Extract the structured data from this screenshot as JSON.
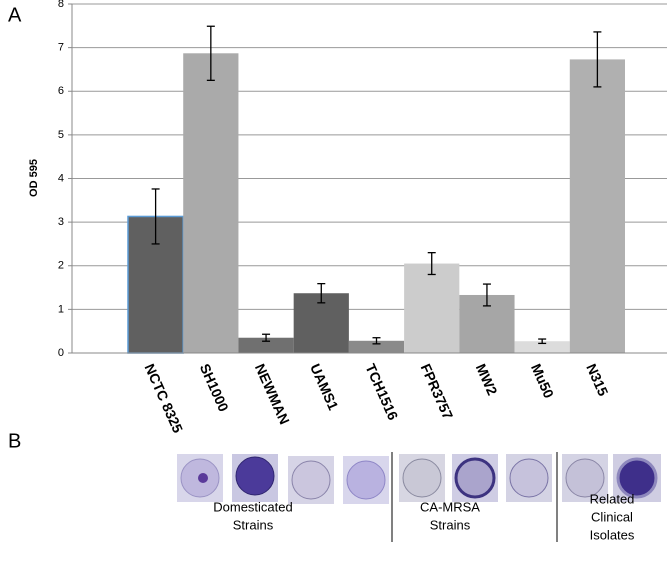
{
  "panel_labels": [
    "A",
    "B"
  ],
  "chart_data": {
    "type": "bar",
    "y_label": "OD 595",
    "categories": [
      "NCTC 8325",
      "SH1000",
      "NEWMAN",
      "UAMS1",
      "TCH1516",
      "FPR3757",
      "MW2",
      "Mu50",
      "N315"
    ],
    "values": [
      3.13,
      6.87,
      0.35,
      1.37,
      0.28,
      2.05,
      1.33,
      0.27,
      6.73
    ],
    "errors": [
      0.63,
      0.62,
      0.08,
      0.22,
      0.07,
      0.25,
      0.25,
      0.05,
      0.63
    ],
    "colors": [
      "#606060",
      "#aaaaaa",
      "#707070",
      "#606060",
      "#8a8a8a",
      "#cccccc",
      "#a6a6a6",
      "#dcdcdc",
      "#b0b0b0"
    ],
    "ylim": [
      0,
      8
    ],
    "yticks": [
      0,
      1,
      2,
      3,
      4,
      5,
      6,
      7,
      8
    ],
    "grid": true
  },
  "wells_panel": {
    "groups": [
      {
        "lines": [
          "Domesticated",
          "Strains"
        ]
      },
      {
        "lines": [
          "CA-MRSA",
          "Strains"
        ]
      },
      {
        "lines": [
          "Related",
          "Clinical",
          "Isolates"
        ]
      }
    ]
  }
}
